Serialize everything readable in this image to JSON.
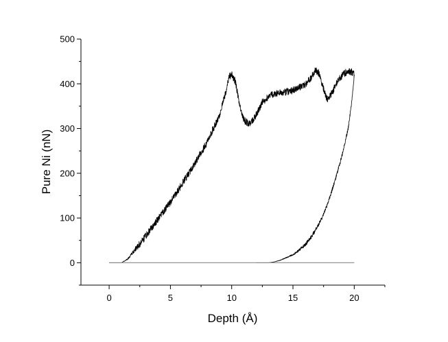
{
  "chart_data": {
    "type": "line",
    "title": "",
    "xlabel": "Depth (Å)",
    "ylabel": "Pure Ni (nN)",
    "xlim": [
      -2.3,
      22.5
    ],
    "ylim": [
      -50,
      500
    ],
    "xticks": [
      0,
      5,
      10,
      15,
      20
    ],
    "yticks": [
      0,
      100,
      200,
      300,
      400,
      500
    ],
    "grid": false,
    "legend": "none",
    "series": [
      {
        "color": "#000000",
        "noise": 8,
        "x": [
          0.0,
          1.0,
          1.5,
          2.0,
          3.0,
          4.0,
          5.0,
          6.0,
          7.0,
          8.0,
          9.0,
          9.5,
          9.8,
          10.0,
          10.3,
          10.6,
          11.0,
          11.5,
          12.0,
          12.5,
          13.0,
          13.5,
          14.0,
          15.0,
          16.0,
          16.5,
          16.8,
          17.1,
          17.5,
          17.8,
          18.2,
          18.6,
          19.0,
          19.3,
          19.6,
          19.9,
          20.0
        ],
        "y": [
          0,
          0,
          8,
          25,
          60,
          98,
          135,
          178,
          222,
          270,
          330,
          380,
          415,
          420,
          405,
          360,
          318,
          310,
          330,
          358,
          372,
          378,
          380,
          385,
          398,
          415,
          430,
          425,
          388,
          365,
          380,
          405,
          418,
          425,
          428,
          425,
          420
        ]
      },
      {
        "color": "#000000",
        "noise": 4,
        "x": [
          20.0,
          19.8,
          19.5,
          19.0,
          18.5,
          18.0,
          17.5,
          17.0,
          16.5,
          16.0,
          15.5,
          15.0,
          14.5,
          14.0,
          13.5,
          13.0,
          12.5,
          12.0
        ],
        "y": [
          420,
          360,
          300,
          240,
          190,
          145,
          108,
          80,
          58,
          40,
          28,
          18,
          12,
          6,
          2,
          0,
          0,
          0
        ]
      },
      {
        "color": "#888888",
        "noise": 0,
        "x": [
          0.0,
          20.0
        ],
        "y": [
          0,
          0
        ]
      }
    ]
  }
}
